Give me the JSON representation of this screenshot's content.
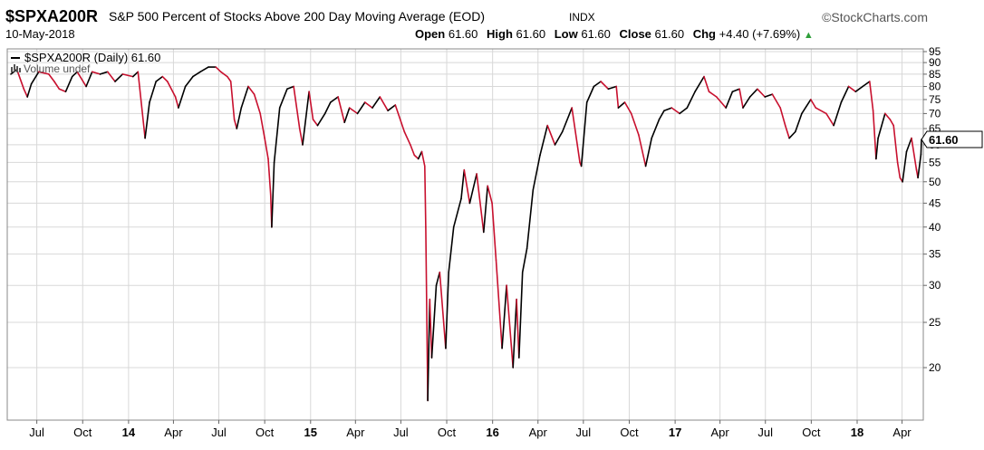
{
  "header": {
    "symbol": "$SPXA200R",
    "description": "S&P 500 Percent of Stocks Above 200 Day Moving Average (EOD)",
    "exchange": "INDX",
    "brand": "StockCharts.com",
    "brand_icon": "copyright-icon",
    "date": "10-May-2018",
    "open_label": "Open",
    "open_value": "61.60",
    "high_label": "High",
    "high_value": "61.60",
    "low_label": "Low",
    "low_value": "61.60",
    "close_label": "Close",
    "close_value": "61.60",
    "chg_label": "Chg",
    "chg_value": "+4.40 (+7.69%)",
    "chg_icon": "up-triangle-icon"
  },
  "legend": {
    "series_label": "$SPXA200R (Daily) 61.60",
    "volume_label": "Volume undef",
    "volume_icon": "volume-bars-icon"
  },
  "last_value_label": "61.60",
  "colors": {
    "up": "#000000",
    "down": "#c8102e",
    "grid": "#d8d8d8",
    "frame": "#888888"
  },
  "chart_data": {
    "type": "line",
    "y_scale": "log",
    "ylim": [
      16,
      95
    ],
    "y_ticks": [
      "95",
      "90",
      "85",
      "80",
      "75",
      "70",
      "65",
      "60",
      "55",
      "50",
      "45",
      "40",
      "35",
      "30",
      "25",
      "20"
    ],
    "x_ticks": [
      {
        "label": "Jul",
        "date": "2013-07-01"
      },
      {
        "label": "Oct",
        "date": "2013-10-01"
      },
      {
        "label": "14",
        "date": "2014-01-01",
        "year": true
      },
      {
        "label": "Apr",
        "date": "2014-04-01"
      },
      {
        "label": "Jul",
        "date": "2014-07-01"
      },
      {
        "label": "Oct",
        "date": "2014-10-01"
      },
      {
        "label": "15",
        "date": "2015-01-01",
        "year": true
      },
      {
        "label": "Apr",
        "date": "2015-04-01"
      },
      {
        "label": "Jul",
        "date": "2015-07-01"
      },
      {
        "label": "Oct",
        "date": "2015-10-01"
      },
      {
        "label": "16",
        "date": "2016-01-01",
        "year": true
      },
      {
        "label": "Apr",
        "date": "2016-04-01"
      },
      {
        "label": "Jul",
        "date": "2016-07-01"
      },
      {
        "label": "Oct",
        "date": "2016-10-01"
      },
      {
        "label": "17",
        "date": "2017-01-01",
        "year": true
      },
      {
        "label": "Apr",
        "date": "2017-04-01"
      },
      {
        "label": "Jul",
        "date": "2017-07-01"
      },
      {
        "label": "Oct",
        "date": "2017-10-01"
      },
      {
        "label": "18",
        "date": "2018-01-01",
        "year": true
      },
      {
        "label": "Apr",
        "date": "2018-04-01"
      }
    ],
    "xlim": [
      "2013-05-10",
      "2018-05-10"
    ],
    "series": [
      {
        "points": [
          [
            "2013-05-10",
            85
          ],
          [
            "2013-05-22",
            87
          ],
          [
            "2013-06-05",
            79
          ],
          [
            "2013-06-12",
            76
          ],
          [
            "2013-06-20",
            81
          ],
          [
            "2013-07-05",
            86
          ],
          [
            "2013-07-25",
            85
          ],
          [
            "2013-08-05",
            82
          ],
          [
            "2013-08-15",
            79
          ],
          [
            "2013-08-28",
            78
          ],
          [
            "2013-09-10",
            84
          ],
          [
            "2013-09-20",
            86
          ],
          [
            "2013-10-08",
            80
          ],
          [
            "2013-10-20",
            86
          ],
          [
            "2013-11-05",
            85
          ],
          [
            "2013-11-20",
            86
          ],
          [
            "2013-12-05",
            82
          ],
          [
            "2013-12-20",
            85
          ],
          [
            "2014-01-10",
            84
          ],
          [
            "2014-01-20",
            86
          ],
          [
            "2014-02-03",
            62
          ],
          [
            "2014-02-12",
            74
          ],
          [
            "2014-02-25",
            82
          ],
          [
            "2014-03-10",
            84
          ],
          [
            "2014-03-20",
            82
          ],
          [
            "2014-04-05",
            76
          ],
          [
            "2014-04-11",
            72
          ],
          [
            "2014-04-25",
            80
          ],
          [
            "2014-05-10",
            84
          ],
          [
            "2014-05-25",
            86
          ],
          [
            "2014-06-10",
            88
          ],
          [
            "2014-06-25",
            88
          ],
          [
            "2014-07-05",
            86
          ],
          [
            "2014-07-18",
            84
          ],
          [
            "2014-07-25",
            82
          ],
          [
            "2014-08-01",
            68
          ],
          [
            "2014-08-06",
            65
          ],
          [
            "2014-08-15",
            72
          ],
          [
            "2014-08-29",
            80
          ],
          [
            "2014-09-10",
            77
          ],
          [
            "2014-09-22",
            70
          ],
          [
            "2014-10-01",
            62
          ],
          [
            "2014-10-08",
            56
          ],
          [
            "2014-10-13",
            47
          ],
          [
            "2014-10-15",
            40
          ],
          [
            "2014-10-20",
            55
          ],
          [
            "2014-10-31",
            72
          ],
          [
            "2014-11-15",
            79
          ],
          [
            "2014-11-28",
            80
          ],
          [
            "2014-12-10",
            65
          ],
          [
            "2014-12-16",
            60
          ],
          [
            "2014-12-29",
            78
          ],
          [
            "2015-01-06",
            68
          ],
          [
            "2015-01-15",
            66
          ],
          [
            "2015-01-30",
            70
          ],
          [
            "2015-02-10",
            74
          ],
          [
            "2015-02-25",
            76
          ],
          [
            "2015-03-10",
            67
          ],
          [
            "2015-03-20",
            72
          ],
          [
            "2015-04-05",
            70
          ],
          [
            "2015-04-20",
            74
          ],
          [
            "2015-05-05",
            72
          ],
          [
            "2015-05-20",
            76
          ],
          [
            "2015-06-05",
            71
          ],
          [
            "2015-06-20",
            73
          ],
          [
            "2015-07-08",
            64
          ],
          [
            "2015-07-20",
            60
          ],
          [
            "2015-07-28",
            57
          ],
          [
            "2015-08-05",
            56
          ],
          [
            "2015-08-12",
            58
          ],
          [
            "2015-08-18",
            54
          ],
          [
            "2015-08-20",
            40
          ],
          [
            "2015-08-24",
            17
          ],
          [
            "2015-08-28",
            28
          ],
          [
            "2015-09-01",
            21
          ],
          [
            "2015-09-10",
            30
          ],
          [
            "2015-09-17",
            32
          ],
          [
            "2015-09-29",
            22
          ],
          [
            "2015-10-05",
            32
          ],
          [
            "2015-10-15",
            40
          ],
          [
            "2015-10-30",
            46
          ],
          [
            "2015-11-05",
            53
          ],
          [
            "2015-11-16",
            45
          ],
          [
            "2015-11-30",
            52
          ],
          [
            "2015-12-14",
            39
          ],
          [
            "2015-12-22",
            49
          ],
          [
            "2015-12-31",
            45
          ],
          [
            "2016-01-08",
            34
          ],
          [
            "2016-01-20",
            22
          ],
          [
            "2016-01-29",
            30
          ],
          [
            "2016-02-11",
            20
          ],
          [
            "2016-02-18",
            28
          ],
          [
            "2016-02-23",
            21
          ],
          [
            "2016-03-01",
            32
          ],
          [
            "2016-03-10",
            36
          ],
          [
            "2016-03-22",
            48
          ],
          [
            "2016-04-05",
            57
          ],
          [
            "2016-04-20",
            66
          ],
          [
            "2016-05-05",
            60
          ],
          [
            "2016-05-20",
            64
          ],
          [
            "2016-06-08",
            72
          ],
          [
            "2016-06-24",
            55
          ],
          [
            "2016-06-27",
            54
          ],
          [
            "2016-07-08",
            74
          ],
          [
            "2016-07-22",
            80
          ],
          [
            "2016-08-05",
            82
          ],
          [
            "2016-08-20",
            79
          ],
          [
            "2016-09-05",
            80
          ],
          [
            "2016-09-09",
            72
          ],
          [
            "2016-09-22",
            74
          ],
          [
            "2016-10-05",
            70
          ],
          [
            "2016-10-20",
            63
          ],
          [
            "2016-11-03",
            54
          ],
          [
            "2016-11-15",
            62
          ],
          [
            "2016-11-30",
            68
          ],
          [
            "2016-12-10",
            71
          ],
          [
            "2016-12-25",
            72
          ],
          [
            "2017-01-10",
            70
          ],
          [
            "2017-01-25",
            72
          ],
          [
            "2017-02-10",
            78
          ],
          [
            "2017-02-28",
            84
          ],
          [
            "2017-03-10",
            78
          ],
          [
            "2017-03-25",
            76
          ],
          [
            "2017-04-13",
            72
          ],
          [
            "2017-04-26",
            78
          ],
          [
            "2017-05-10",
            79
          ],
          [
            "2017-05-17",
            72
          ],
          [
            "2017-05-31",
            76
          ],
          [
            "2017-06-15",
            79
          ],
          [
            "2017-06-30",
            76
          ],
          [
            "2017-07-15",
            77
          ],
          [
            "2017-07-31",
            72
          ],
          [
            "2017-08-10",
            66
          ],
          [
            "2017-08-18",
            62
          ],
          [
            "2017-08-30",
            64
          ],
          [
            "2017-09-12",
            70
          ],
          [
            "2017-09-30",
            75
          ],
          [
            "2017-10-10",
            72
          ],
          [
            "2017-10-31",
            70
          ],
          [
            "2017-11-15",
            66
          ],
          [
            "2017-11-30",
            74
          ],
          [
            "2017-12-15",
            80
          ],
          [
            "2017-12-29",
            78
          ],
          [
            "2018-01-12",
            80
          ],
          [
            "2018-01-26",
            82
          ],
          [
            "2018-02-02",
            71
          ],
          [
            "2018-02-08",
            56
          ],
          [
            "2018-02-12",
            62
          ],
          [
            "2018-02-26",
            70
          ],
          [
            "2018-03-08",
            68
          ],
          [
            "2018-03-15",
            66
          ],
          [
            "2018-03-23",
            55
          ],
          [
            "2018-03-28",
            51
          ],
          [
            "2018-04-02",
            50
          ],
          [
            "2018-04-10",
            58
          ],
          [
            "2018-04-20",
            62
          ],
          [
            "2018-04-30",
            53
          ],
          [
            "2018-05-03",
            51
          ],
          [
            "2018-05-07",
            55
          ],
          [
            "2018-05-09",
            57.2
          ],
          [
            "2018-05-10",
            61.6
          ]
        ]
      }
    ]
  }
}
